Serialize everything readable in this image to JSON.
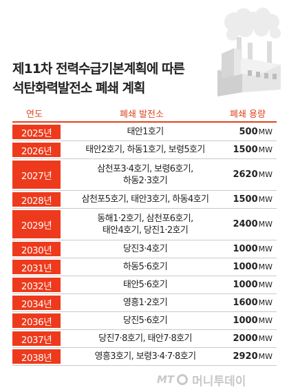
{
  "title": {
    "line1": "제11차 전력수급기본계획에 따른",
    "line2": "석탄화력발전소 폐쇄 계획"
  },
  "headers": {
    "year": "연도",
    "plant": "폐쇄 발전소",
    "capacity": "폐쇄 용량"
  },
  "unit": "MW",
  "rows": [
    {
      "year": "2025년",
      "plants": [
        "태안1호기"
      ],
      "capacity": "500"
    },
    {
      "year": "2026년",
      "plants": [
        "태안2호기, 하동1호기, 보령5호기"
      ],
      "capacity": "1500"
    },
    {
      "year": "2027년",
      "plants": [
        "삼천포3·4호기, 보령6호기,",
        "하동2·3호기"
      ],
      "capacity": "2620"
    },
    {
      "year": "2028년",
      "plants": [
        "삼천포5호기, 태안3호기, 하동4호기"
      ],
      "capacity": "1500"
    },
    {
      "year": "2029년",
      "plants": [
        "동해1·2호기, 삼천포6호기,",
        "태안4호기, 당진1·2호기"
      ],
      "capacity": "2400"
    },
    {
      "year": "2030년",
      "plants": [
        "당진3·4호기"
      ],
      "capacity": "1000"
    },
    {
      "year": "2031년",
      "plants": [
        "하동5·6호기"
      ],
      "capacity": "1000"
    },
    {
      "year": "2032년",
      "plants": [
        "태안5·6호기"
      ],
      "capacity": "1000"
    },
    {
      "year": "2034년",
      "plants": [
        "영흥1·2호기"
      ],
      "capacity": "1600"
    },
    {
      "year": "2036년",
      "plants": [
        "당진5·6호기"
      ],
      "capacity": "1000"
    },
    {
      "year": "2037년",
      "plants": [
        "당진7·8호기, 태안7·8호기"
      ],
      "capacity": "2000"
    },
    {
      "year": "2038년",
      "plants": [
        "영흥3호기, 보령3·4·7·8호기"
      ],
      "capacity": "2920"
    }
  ],
  "watermark": {
    "prefix": "MT",
    "brand": "머니투데이"
  },
  "colors": {
    "accent": "#ee3a1c",
    "header_text": "#e0421f"
  },
  "icons": [
    "power-plant-illustration",
    "money-today-logo-ring-icon"
  ]
}
